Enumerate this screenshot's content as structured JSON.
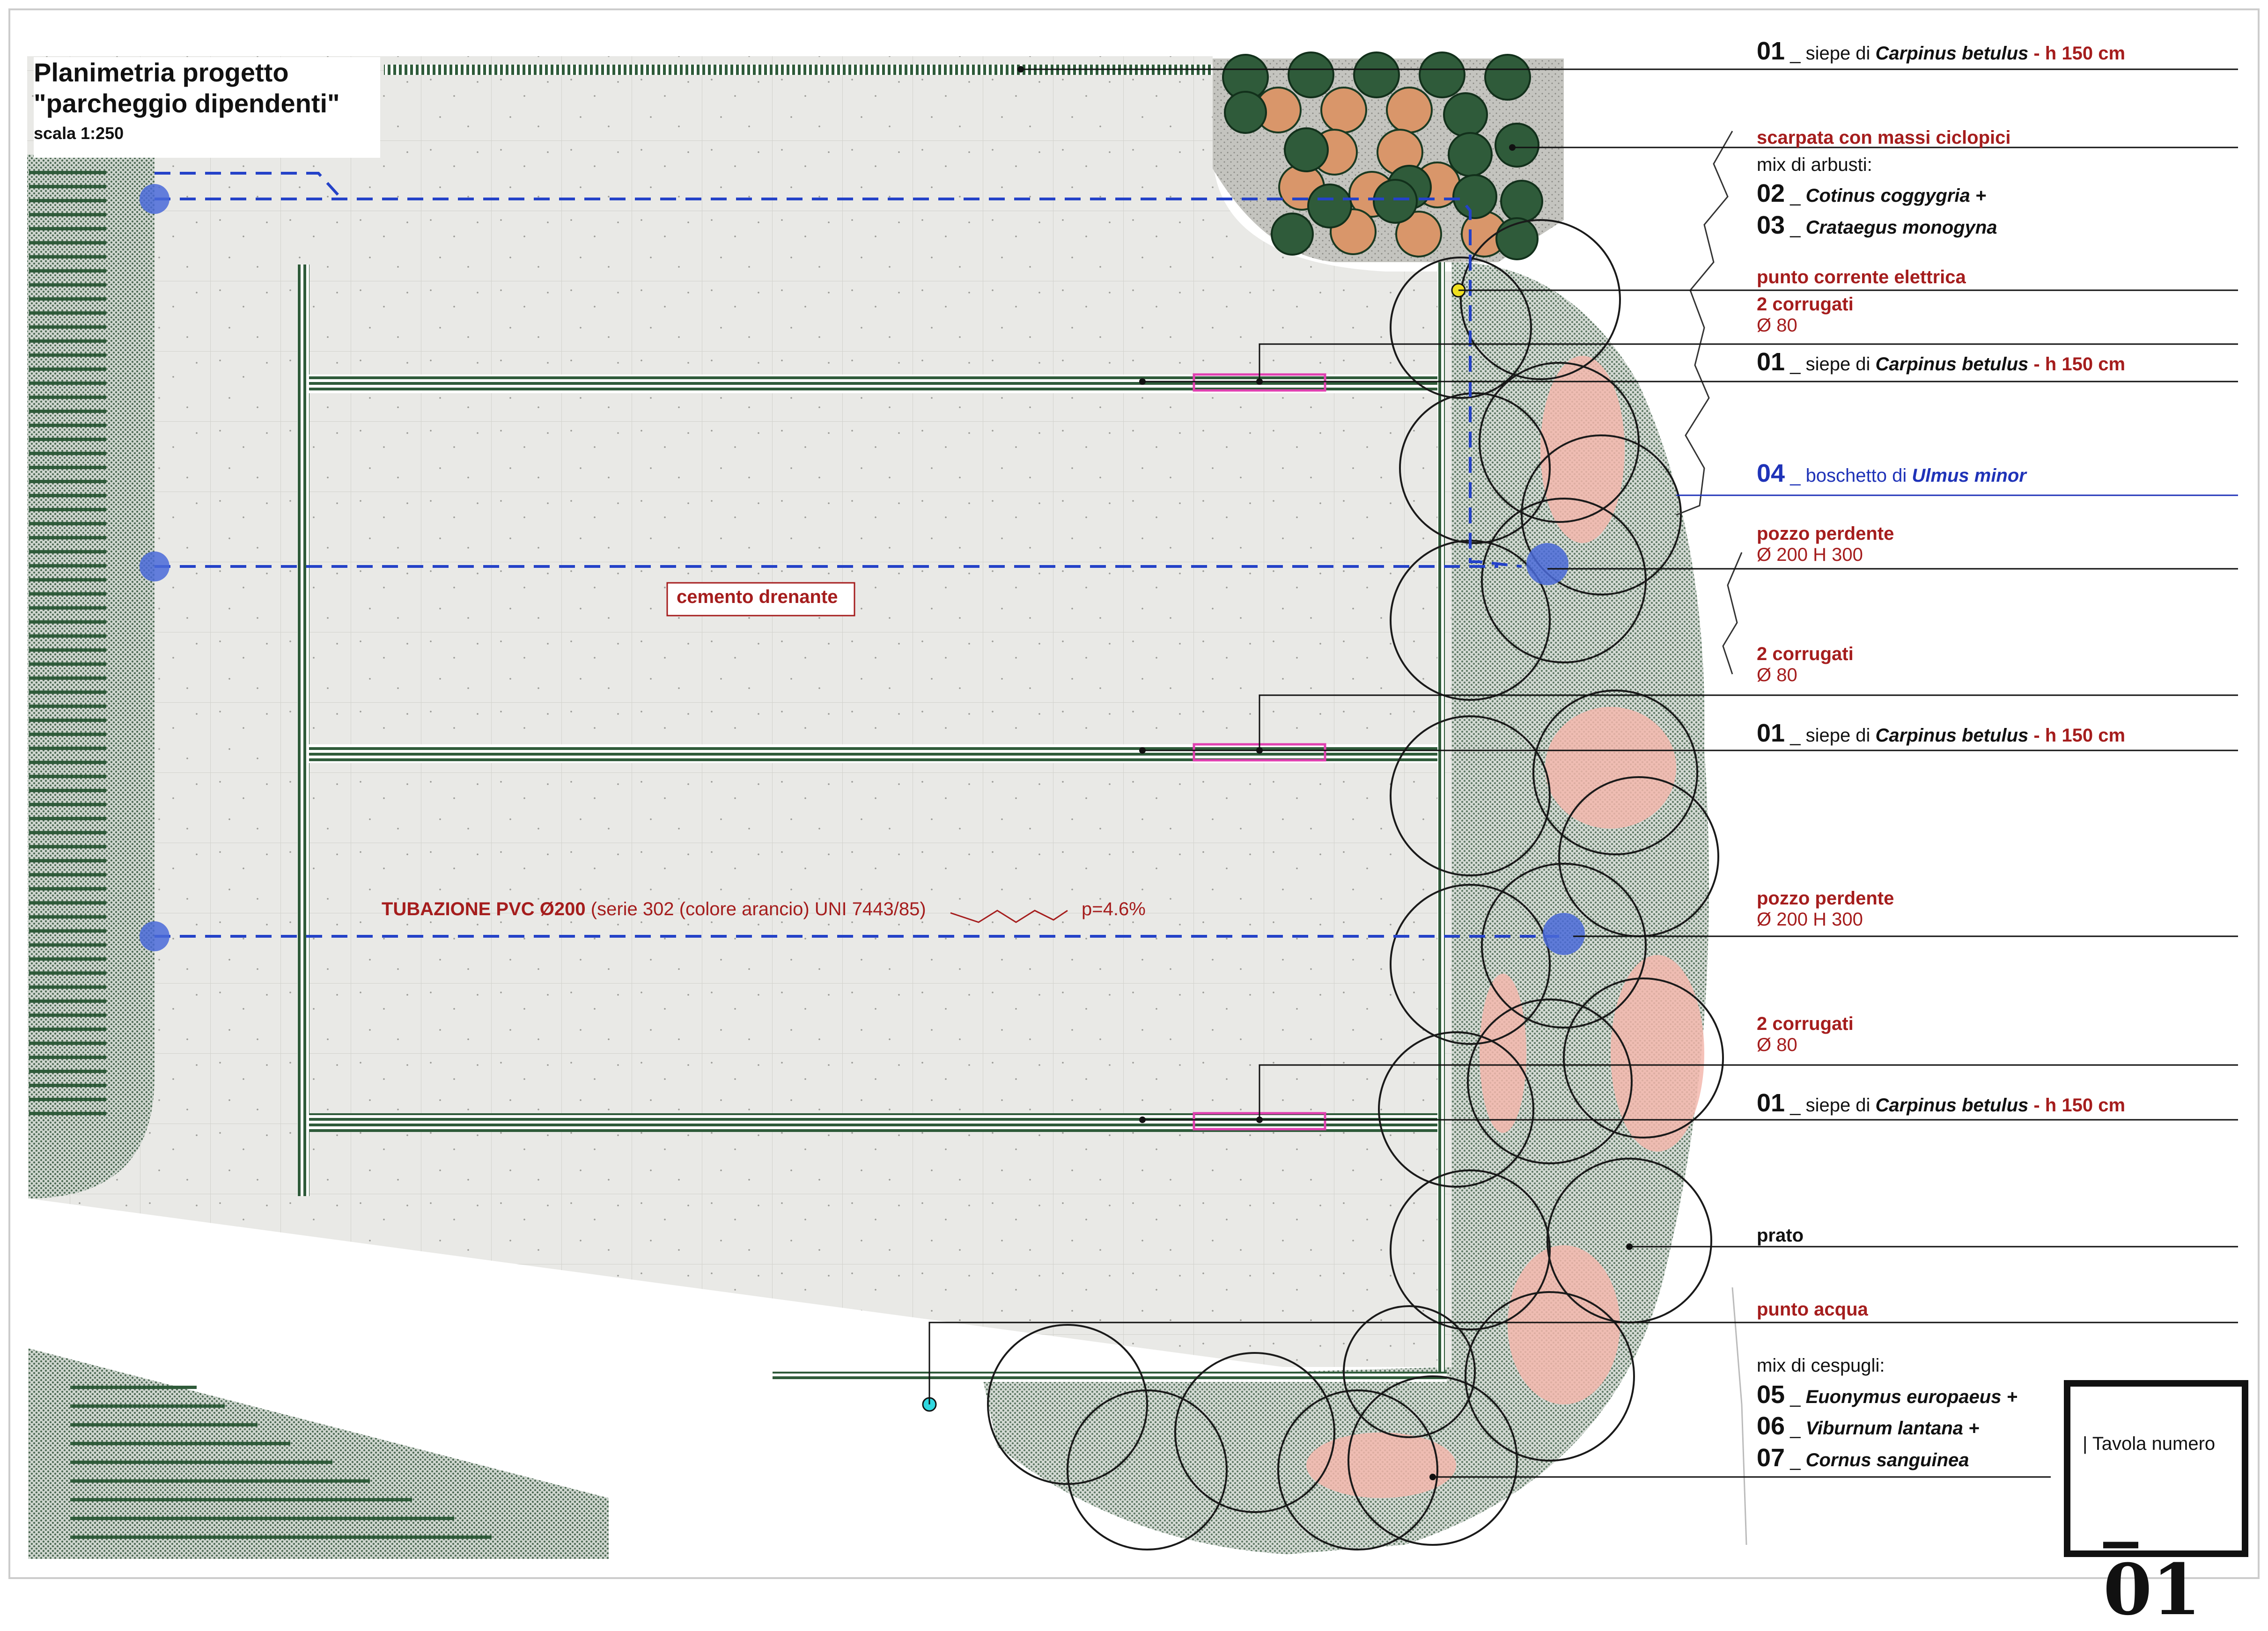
{
  "title": {
    "line1": "Planimetria progetto",
    "line2": "\"parcheggio dipendenti\"",
    "scale": "scala 1:250"
  },
  "plan_labels": {
    "cemento": "cemento drenante",
    "pipe_main": "TUBAZIONE PVC Ø200",
    "pipe_detail": "(serie 302 (colore arancio) UNI 7443/85)",
    "slope": "p=4.6%"
  },
  "legend": [
    {
      "id": "l1",
      "num": "01",
      "sep": " _ ",
      "text": "siepe di ",
      "species": "Carpinus betulus",
      "extra": " - h 150 cm"
    },
    {
      "id": "l2",
      "title": "scarpata con massi ciclopici"
    },
    {
      "id": "l3",
      "text": "mix di arbusti:"
    },
    {
      "id": "l4",
      "num": "02",
      "sep": " _ ",
      "species": "Cotinus coggygria +"
    },
    {
      "id": "l5",
      "num": "03",
      "sep": " _ ",
      "species": "Crataegus monogyna"
    },
    {
      "id": "l6",
      "title": "punto corrente elettrica"
    },
    {
      "id": "l7",
      "title": "2 corrugati",
      "sub": "Ø 80"
    },
    {
      "id": "l8",
      "num": "01",
      "sep": " _ ",
      "text": "siepe di ",
      "species": "Carpinus betulus",
      "extra": " - h 150 cm"
    },
    {
      "id": "l9",
      "num": "04",
      "sep": " _ ",
      "text": "boschetto di ",
      "species": "Ulmus minor"
    },
    {
      "id": "l10",
      "title": "pozzo perdente",
      "sub": "Ø 200 H 300"
    },
    {
      "id": "l11",
      "title": "2 corrugati",
      "sub": "Ø 80"
    },
    {
      "id": "l12",
      "num": "01",
      "sep": " _ ",
      "text": "siepe di ",
      "species": "Carpinus betulus",
      "extra": " - h 150 cm"
    },
    {
      "id": "l13",
      "title": "pozzo perdente",
      "sub": "Ø 200 H 300"
    },
    {
      "id": "l14",
      "title": "2 corrugati",
      "sub": "Ø 80"
    },
    {
      "id": "l15",
      "num": "01",
      "sep": " _ ",
      "text": "siepe di ",
      "species": "Carpinus betulus",
      "extra": " - h 150 cm"
    },
    {
      "id": "l16",
      "plainbold": "prato"
    },
    {
      "id": "l17",
      "title": "punto acqua"
    },
    {
      "id": "l18",
      "text": "mix di cespugli:"
    },
    {
      "id": "l19",
      "num": "05",
      "sep": " _ ",
      "species": "Euonymus europaeus +"
    },
    {
      "id": "l20",
      "num": "06",
      "sep": " _ ",
      "species": "Viburnum lantana +"
    },
    {
      "id": "l21",
      "num": "07",
      "sep": " _ ",
      "species": "Cornus sanguinea"
    }
  ],
  "tavola": {
    "label": "| Tavola numero",
    "number": "_ 01"
  },
  "colors": {
    "hedge": "#2f5b3a",
    "pipe": "#2442c8",
    "well": "#4a6ad8",
    "red_label": "#a51d1d",
    "shrub_orange": "#d9966a",
    "pink_blob": "#f3b7ad",
    "magenta": "#e040b0",
    "power_point": "#f0e020",
    "water_point": "#30d8e0"
  }
}
